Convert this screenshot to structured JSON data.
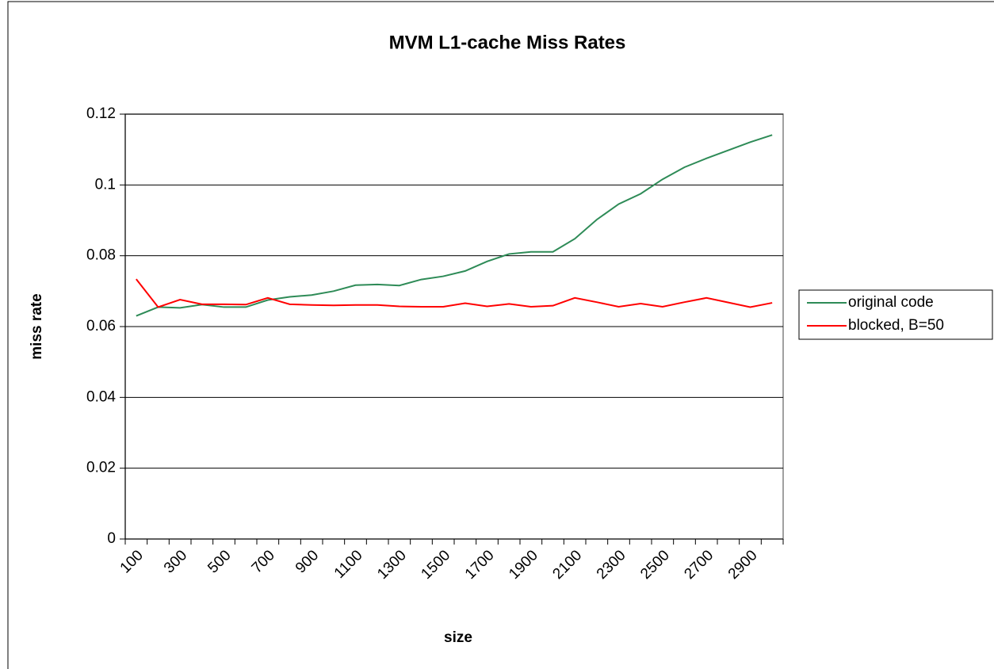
{
  "chart_data": {
    "type": "line",
    "title": "MVM L1-cache Miss Rates",
    "x_label": "size",
    "y_label": "miss rate",
    "categories": [
      "100",
      null,
      "300",
      null,
      "500",
      null,
      "700",
      null,
      "900",
      null,
      "1100",
      null,
      "1300",
      null,
      "1500",
      null,
      "1700",
      null,
      "1900",
      null,
      "2100",
      null,
      "2300",
      null,
      "2500",
      null,
      "2700",
      null,
      "2900",
      null
    ],
    "series": [
      {
        "name": "original code",
        "color": "#2e8b57",
        "values": [
          0.063,
          0.0655,
          0.0653,
          0.0662,
          0.0655,
          0.0655,
          0.0675,
          0.0684,
          0.0689,
          0.07,
          0.0717,
          0.0719,
          0.0716,
          0.0733,
          0.0742,
          0.0757,
          0.0784,
          0.0805,
          0.0811,
          0.0811,
          0.0848,
          0.0902,
          0.0946,
          0.0975,
          0.1016,
          0.105,
          0.1075,
          0.1098,
          0.1121,
          0.1141
        ]
      },
      {
        "name": "blocked, B=50",
        "color": "#ff0000",
        "values": [
          0.0734,
          0.0655,
          0.0676,
          0.0663,
          0.0663,
          0.0662,
          0.0681,
          0.0663,
          0.0661,
          0.066,
          0.0661,
          0.0661,
          0.0657,
          0.0656,
          0.0656,
          0.0666,
          0.0657,
          0.0664,
          0.0656,
          0.0659,
          0.0681,
          0.0669,
          0.0656,
          0.0665,
          0.0656,
          0.0669,
          0.0681,
          0.0668,
          0.0655,
          0.0667
        ]
      }
    ],
    "ylim": [
      0,
      0.12
    ],
    "yticks": [
      0,
      0.02,
      0.04,
      0.06,
      0.08,
      0.1,
      0.12
    ],
    "grid": true,
    "legend": "right"
  }
}
